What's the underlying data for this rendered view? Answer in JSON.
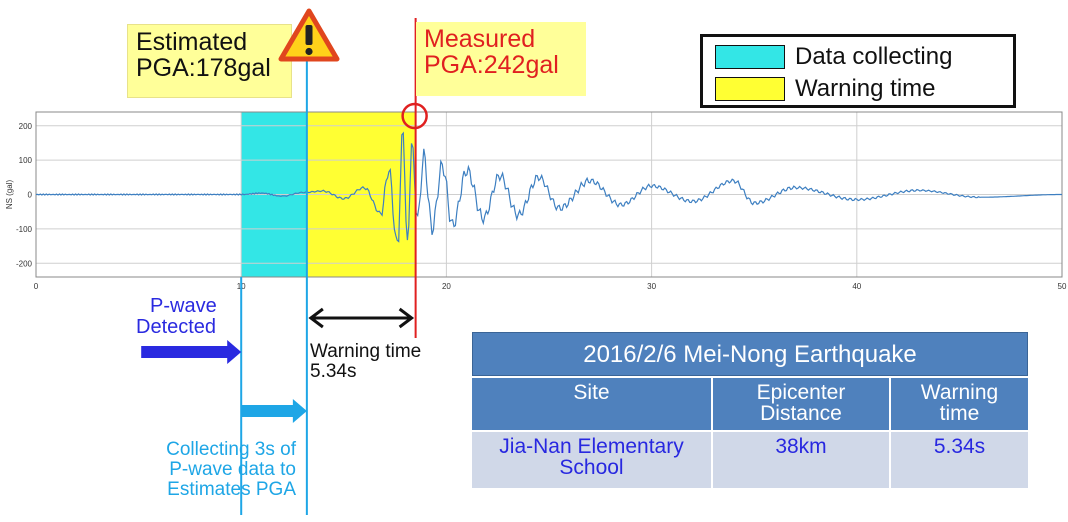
{
  "chart_data": {
    "type": "line",
    "title": "",
    "xlabel": "",
    "ylabel": "NS (gal)",
    "xlim": [
      0,
      50
    ],
    "ylim": [
      -240,
      240
    ],
    "x_ticks": [
      0,
      10,
      20,
      30,
      40,
      50
    ],
    "y_ticks": [
      200,
      100,
      0,
      -100,
      -200
    ],
    "grid": true,
    "colors": {
      "series": "#3d7fc1",
      "data_collecting": "#33e6e6",
      "warning_time": "#ffff33",
      "measured_line": "#e02020",
      "estimated_line": "#1ea6e6"
    },
    "shaded_regions": [
      {
        "label": "Data collecting",
        "x_start": 10,
        "x_end": 13.2
      },
      {
        "label": "Warning time",
        "x_start": 13.2,
        "x_end": 18.5
      }
    ],
    "series": [
      {
        "x": [
          0,
          5,
          10,
          11,
          12,
          13,
          14,
          15,
          16,
          16.8,
          17.2,
          17.6,
          17.9,
          18.1,
          18.3,
          18.6,
          18.9,
          19.3,
          19.8,
          20.3,
          21,
          21.8,
          22.6,
          23.5,
          24.5,
          25.5,
          27,
          28.5,
          30,
          32,
          34,
          35,
          37,
          40,
          43,
          46,
          50
        ],
        "values": [
          0,
          0,
          0,
          4,
          -5,
          6,
          10,
          -12,
          20,
          -55,
          70,
          -150,
          185,
          -170,
          150,
          -70,
          110,
          -100,
          85,
          -90,
          70,
          -70,
          55,
          -60,
          50,
          -40,
          40,
          -30,
          25,
          -20,
          40,
          -25,
          20,
          -15,
          12,
          -8,
          0
        ]
      }
    ]
  },
  "labels": {
    "estimated_line1": "Estimated",
    "estimated_line2": "PGA:178gal",
    "measured_line1": "Measured",
    "measured_line2": "PGA:242gal",
    "legend_data_collecting": "Data collecting",
    "legend_warning_time": "Warning time",
    "pwave_line1": "P-wave",
    "pwave_line2": "Detected",
    "warning_line1": "Warning time",
    "warning_line2": "5.34s",
    "collecting_line1": "Collecting 3s of",
    "collecting_line2": "P-wave data to",
    "collecting_line3": "Estimates PGA",
    "warning_icon": "warning-triangle-icon"
  },
  "table": {
    "title": "2016/2/6 Mei-Nong Earthquake",
    "headers": [
      "Site",
      "Epicenter Distance",
      "Warning time"
    ],
    "header_lines": [
      [
        "Site"
      ],
      [
        "Epicenter",
        "Distance"
      ],
      [
        "Warning",
        "time"
      ]
    ],
    "rows": [
      {
        "site_lines": [
          "Jia-Nan Elementary",
          "School"
        ],
        "distance": "38km",
        "warning": "5.34s"
      }
    ]
  }
}
